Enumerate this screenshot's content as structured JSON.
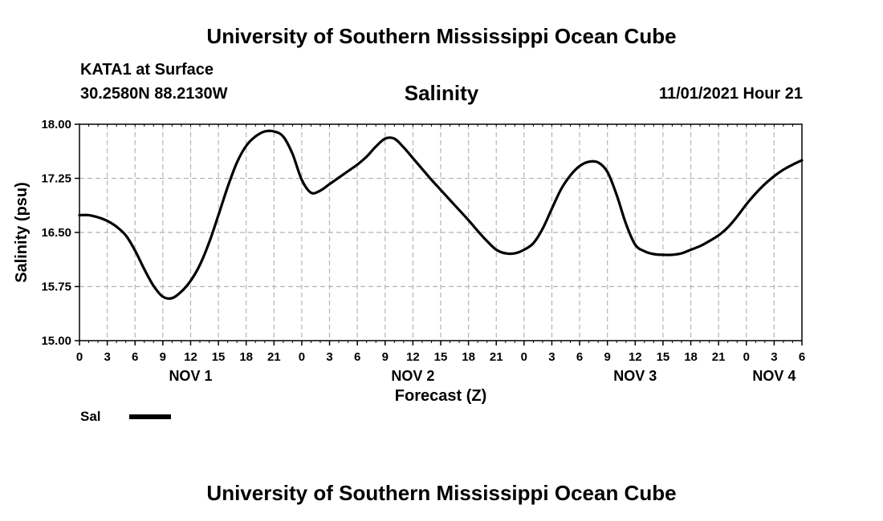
{
  "header": {
    "title": "University of Southern Mississippi Ocean Cube",
    "station": "KATA1 at Surface",
    "coords": "30.2580N  88.2130W",
    "variable_title": "Salinity",
    "timestamp": "11/01/2021 Hour 21"
  },
  "footer": {
    "title": "University of Southern Mississippi Ocean Cube"
  },
  "legend": {
    "label": "Sal",
    "color": "#000000"
  },
  "chart_data": {
    "type": "line",
    "title": "Salinity",
    "xlabel": "Forecast (Z)",
    "ylabel": "Salinity (psu)",
    "ylim": [
      15.0,
      18.0
    ],
    "yticks": [
      "15.00",
      "15.75",
      "16.50",
      "17.25",
      "18.00"
    ],
    "xlim": [
      0,
      78
    ],
    "xtick_labels": [
      "0",
      "3",
      "6",
      "9",
      "12",
      "15",
      "18",
      "21",
      "0",
      "3",
      "6",
      "9",
      "12",
      "15",
      "18",
      "21",
      "0",
      "3",
      "6",
      "9",
      "12",
      "15",
      "18",
      "21",
      "0",
      "3",
      "6"
    ],
    "date_labels": [
      {
        "label": "NOV 1",
        "hour": 12
      },
      {
        "label": "NOV 2",
        "hour": 36
      },
      {
        "label": "NOV 3",
        "hour": 60
      },
      {
        "label": "NOV 4",
        "hour": 75
      }
    ],
    "grid": true,
    "legend_position": "bottom-left",
    "series": [
      {
        "name": "Sal",
        "color": "#000000",
        "x": [
          0,
          1,
          2,
          3,
          4,
          5,
          6,
          7,
          8,
          9,
          10,
          11,
          12,
          13,
          14,
          15,
          16,
          17,
          18,
          19,
          20,
          21,
          22,
          23,
          24,
          25,
          26,
          27,
          28,
          29,
          30,
          31,
          32,
          33,
          34,
          35,
          36,
          37,
          38,
          39,
          40,
          41,
          42,
          43,
          44,
          45,
          46,
          47,
          48,
          49,
          50,
          51,
          52,
          53,
          54,
          55,
          56,
          57,
          58,
          59,
          60,
          61,
          62,
          63,
          64,
          65,
          66,
          67,
          68,
          69,
          70,
          71,
          72,
          73,
          74,
          75,
          76,
          77,
          78
        ],
        "values": [
          16.74,
          16.74,
          16.71,
          16.66,
          16.58,
          16.46,
          16.25,
          15.99,
          15.76,
          15.61,
          15.59,
          15.68,
          15.83,
          16.05,
          16.36,
          16.74,
          17.13,
          17.47,
          17.7,
          17.83,
          17.9,
          17.9,
          17.83,
          17.59,
          17.23,
          17.05,
          17.08,
          17.17,
          17.26,
          17.35,
          17.44,
          17.55,
          17.69,
          17.8,
          17.8,
          17.68,
          17.53,
          17.38,
          17.23,
          17.09,
          16.95,
          16.81,
          16.67,
          16.52,
          16.38,
          16.26,
          16.21,
          16.21,
          16.26,
          16.35,
          16.55,
          16.83,
          17.1,
          17.29,
          17.42,
          17.48,
          17.47,
          17.34,
          17.02,
          16.62,
          16.33,
          16.24,
          16.2,
          16.19,
          16.19,
          16.21,
          16.26,
          16.31,
          16.38,
          16.46,
          16.57,
          16.72,
          16.89,
          17.04,
          17.17,
          17.28,
          17.37,
          17.44,
          17.5
        ]
      }
    ]
  }
}
